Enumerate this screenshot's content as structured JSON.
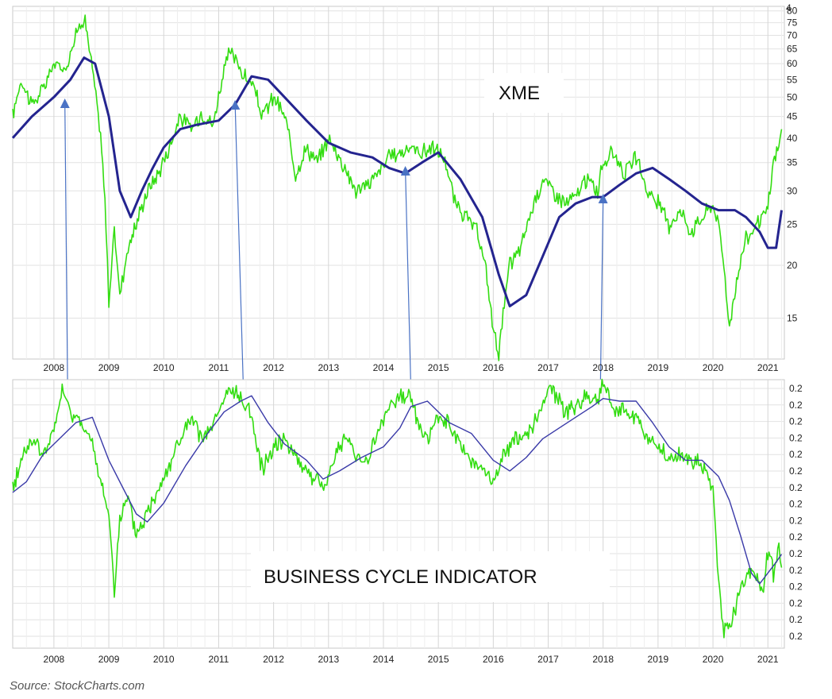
{
  "chart_data": [
    {
      "type": "line",
      "title": "XME",
      "scale": "log",
      "x_ticks": [
        "2008",
        "2009",
        "2010",
        "2011",
        "2012",
        "2013",
        "2014",
        "2015",
        "2016",
        "2017",
        "2018",
        "2019",
        "2020",
        "2021"
      ],
      "y_ticks": [
        15,
        20,
        25,
        30,
        35,
        40,
        45,
        50,
        55,
        60,
        65,
        70,
        75,
        80
      ],
      "y_top_label": "4",
      "ylim": [
        12,
        82
      ],
      "xlim": [
        2007.25,
        2021.3
      ],
      "grid": true,
      "series": [
        {
          "name": "",
          "color": "#33dd11",
          "x": [
            2007.25,
            2007.4,
            2007.6,
            2007.8,
            2008.0,
            2008.2,
            2008.4,
            2008.55,
            2008.7,
            2008.85,
            2008.95,
            2009.0,
            2009.1,
            2009.2,
            2009.35,
            2009.5,
            2009.7,
            2009.9,
            2010.1,
            2010.3,
            2010.5,
            2010.7,
            2010.9,
            2011.1,
            2011.2,
            2011.35,
            2011.5,
            2011.6,
            2011.8,
            2012.0,
            2012.2,
            2012.4,
            2012.6,
            2012.8,
            2013.0,
            2013.2,
            2013.4,
            2013.5,
            2013.7,
            2013.9,
            2014.1,
            2014.3,
            2014.5,
            2014.7,
            2014.9,
            2015.1,
            2015.3,
            2015.5,
            2015.7,
            2015.85,
            2016.0,
            2016.1,
            2016.2,
            2016.3,
            2016.5,
            2016.7,
            2016.9,
            2017.1,
            2017.3,
            2017.5,
            2017.7,
            2017.9,
            2018.0,
            2018.2,
            2018.4,
            2018.6,
            2018.8,
            2019.0,
            2019.2,
            2019.4,
            2019.6,
            2019.8,
            2020.0,
            2020.1,
            2020.2,
            2020.3,
            2020.45,
            2020.6,
            2020.8,
            2021.0,
            2021.1,
            2021.2,
            2021.25
          ],
          "y": [
            45,
            55,
            48,
            52,
            60,
            58,
            70,
            78,
            58,
            40,
            25,
            16,
            24,
            17,
            22,
            25,
            30,
            33,
            38,
            45,
            42,
            46,
            43,
            58,
            64,
            60,
            55,
            54,
            45,
            50,
            45,
            33,
            38,
            35,
            40,
            36,
            32,
            30,
            31,
            33,
            36,
            37,
            38,
            37,
            38,
            36,
            28,
            26,
            24,
            20,
            14,
            12.5,
            16,
            20,
            22,
            27,
            32,
            30,
            28,
            29,
            32,
            30,
            35,
            37,
            33,
            36,
            30,
            28,
            25,
            27,
            24,
            26,
            28,
            25,
            20,
            14,
            19,
            23,
            25,
            27,
            35,
            38,
            42
          ]
        },
        {
          "name": "",
          "color": "#24248f",
          "x": [
            2007.25,
            2007.6,
            2008.0,
            2008.3,
            2008.55,
            2008.75,
            2009.0,
            2009.2,
            2009.4,
            2009.6,
            2009.8,
            2010.0,
            2010.3,
            2010.6,
            2011.0,
            2011.3,
            2011.6,
            2011.9,
            2012.2,
            2012.6,
            2013.0,
            2013.4,
            2013.8,
            2014.1,
            2014.4,
            2014.7,
            2015.0,
            2015.4,
            2015.8,
            2016.1,
            2016.3,
            2016.6,
            2016.9,
            2017.2,
            2017.5,
            2017.8,
            2018.0,
            2018.3,
            2018.6,
            2018.9,
            2019.2,
            2019.5,
            2019.8,
            2020.1,
            2020.4,
            2020.6,
            2020.85,
            2021.0,
            2021.15,
            2021.25
          ],
          "y": [
            40,
            45,
            50,
            55,
            62,
            60,
            45,
            30,
            26,
            30,
            34,
            38,
            42,
            43,
            44,
            48,
            56,
            55,
            50,
            44,
            39,
            37,
            36,
            34,
            33,
            35,
            37,
            32,
            26,
            19,
            16,
            17,
            21,
            26,
            28,
            29,
            29,
            31,
            33,
            34,
            32,
            30,
            28,
            27,
            27,
            26,
            24,
            22,
            22,
            27
          ]
        }
      ],
      "arrows": [
        2008.2,
        2011.3,
        2014.4,
        2018.0
      ]
    },
    {
      "type": "line",
      "title": "BUSINESS CYCLE INDICATOR",
      "x_ticks": [
        "2008",
        "2009",
        "2010",
        "2011",
        "2012",
        "2013",
        "2014",
        "2015",
        "2016",
        "2017",
        "2018",
        "2019",
        "2020",
        "2021"
      ],
      "y_tick_labels": [
        "0.2",
        "0.2",
        "0.2",
        "0.2",
        "0.2",
        "0.2",
        "0.2",
        "0.2",
        "0.2",
        "0.2",
        "0.2",
        "0.2",
        "0.2",
        "0.2",
        "0.2",
        "0.2"
      ],
      "ylim": [
        0,
        1
      ],
      "xlim": [
        2007.25,
        2021.3
      ],
      "grid": true,
      "series": [
        {
          "name": "",
          "color": "#33dd11",
          "x": [
            2007.25,
            2007.4,
            2007.6,
            2007.8,
            2008.0,
            2008.15,
            2008.3,
            2008.5,
            2008.7,
            2008.85,
            2009.0,
            2009.1,
            2009.2,
            2009.35,
            2009.5,
            2009.7,
            2009.9,
            2010.1,
            2010.3,
            2010.5,
            2010.7,
            2010.9,
            2011.0,
            2011.2,
            2011.4,
            2011.55,
            2011.7,
            2011.8,
            2012.0,
            2012.2,
            2012.4,
            2012.6,
            2012.8,
            2012.95,
            2013.1,
            2013.3,
            2013.5,
            2013.7,
            2013.9,
            2014.1,
            2014.3,
            2014.5,
            2014.65,
            2014.8,
            2015.0,
            2015.2,
            2015.4,
            2015.6,
            2015.8,
            2016.0,
            2016.2,
            2016.4,
            2016.6,
            2016.8,
            2016.95,
            2017.05,
            2017.3,
            2017.5,
            2017.7,
            2017.9,
            2018.0,
            2018.2,
            2018.4,
            2018.6,
            2018.8,
            2019.0,
            2019.2,
            2019.4,
            2019.6,
            2019.8,
            2020.0,
            2020.1,
            2020.2,
            2020.3,
            2020.45,
            2020.6,
            2020.75,
            2020.9,
            2021.0,
            2021.1,
            2021.2,
            2021.25
          ],
          "y": [
            0.59,
            0.7,
            0.78,
            0.72,
            0.8,
            0.97,
            0.87,
            0.85,
            0.75,
            0.62,
            0.5,
            0.22,
            0.48,
            0.55,
            0.42,
            0.5,
            0.6,
            0.68,
            0.78,
            0.85,
            0.78,
            0.82,
            0.88,
            0.96,
            0.93,
            0.9,
            0.75,
            0.66,
            0.76,
            0.78,
            0.72,
            0.66,
            0.62,
            0.6,
            0.72,
            0.78,
            0.72,
            0.7,
            0.8,
            0.9,
            0.93,
            0.95,
            0.82,
            0.78,
            0.86,
            0.83,
            0.75,
            0.7,
            0.66,
            0.62,
            0.72,
            0.78,
            0.8,
            0.85,
            0.92,
            0.98,
            0.88,
            0.9,
            0.94,
            0.92,
            0.99,
            0.9,
            0.88,
            0.86,
            0.78,
            0.75,
            0.7,
            0.72,
            0.7,
            0.68,
            0.6,
            0.25,
            0.06,
            0.08,
            0.18,
            0.27,
            0.3,
            0.2,
            0.36,
            0.28,
            0.38,
            0.3
          ]
        },
        {
          "name": "",
          "color": "#3a3aa8",
          "x": [
            2007.25,
            2007.5,
            2007.8,
            2008.1,
            2008.4,
            2008.7,
            2009.0,
            2009.3,
            2009.5,
            2009.7,
            2010.0,
            2010.4,
            2010.8,
            2011.1,
            2011.4,
            2011.6,
            2011.9,
            2012.2,
            2012.6,
            2012.9,
            2013.2,
            2013.6,
            2014.0,
            2014.3,
            2014.5,
            2014.8,
            2015.2,
            2015.6,
            2016.0,
            2016.3,
            2016.6,
            2016.9,
            2017.2,
            2017.5,
            2017.8,
            2018.0,
            2018.3,
            2018.6,
            2018.9,
            2019.2,
            2019.5,
            2019.8,
            2020.1,
            2020.3,
            2020.5,
            2020.7,
            2020.85,
            2021.0,
            2021.15,
            2021.25
          ],
          "y": [
            0.58,
            0.62,
            0.72,
            0.78,
            0.84,
            0.86,
            0.7,
            0.58,
            0.5,
            0.47,
            0.54,
            0.68,
            0.8,
            0.88,
            0.92,
            0.94,
            0.84,
            0.76,
            0.7,
            0.63,
            0.66,
            0.71,
            0.75,
            0.82,
            0.9,
            0.92,
            0.84,
            0.8,
            0.7,
            0.66,
            0.71,
            0.78,
            0.82,
            0.86,
            0.9,
            0.93,
            0.92,
            0.92,
            0.84,
            0.75,
            0.7,
            0.7,
            0.64,
            0.55,
            0.42,
            0.28,
            0.24,
            0.28,
            0.32,
            0.35
          ]
        }
      ]
    }
  ],
  "source": "Source: StockCharts.com"
}
